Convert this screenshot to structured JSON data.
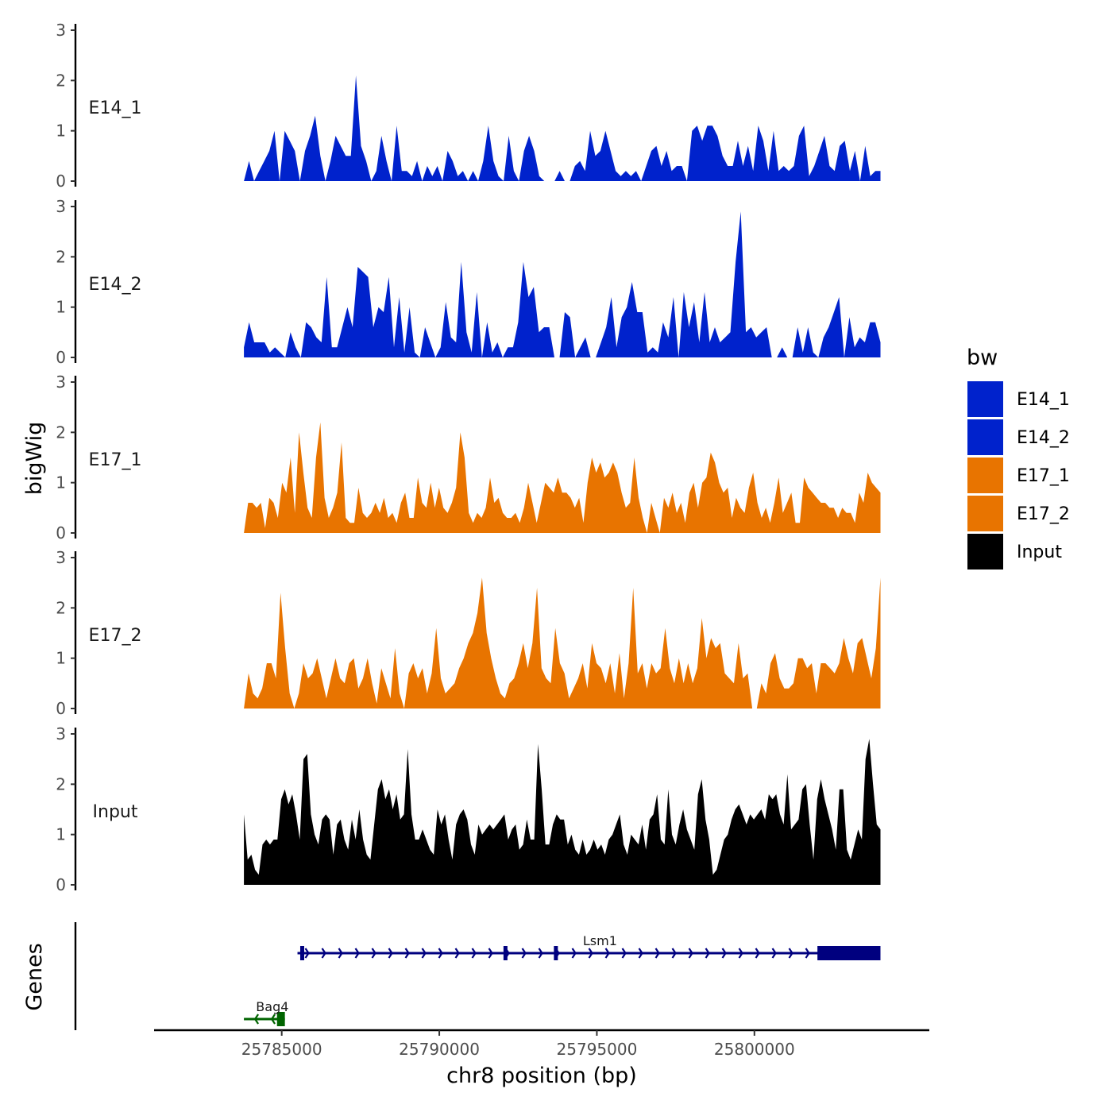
{
  "chart_data": {
    "type": "area",
    "region": "chr8",
    "xlabel": "chr8 position (bp)",
    "xlim": [
      25781000,
      25805500
    ],
    "xticks": [
      25785000,
      25790000,
      25795000,
      25800000
    ],
    "xtick_labels": [
      "25785000",
      "25790000",
      "25795000",
      "25800000"
    ],
    "data_range": [
      25783800,
      25804000
    ],
    "ylabel": "bigWig",
    "ylim": [
      0,
      3
    ],
    "yticks": [
      0,
      1,
      2,
      3
    ],
    "ytick_labels": [
      "0",
      "1",
      "2",
      "3"
    ],
    "legend": {
      "title": "bw",
      "entries": [
        {
          "label": "E14_1",
          "color": "#0022cc"
        },
        {
          "label": "E14_2",
          "color": "#0022cc"
        },
        {
          "label": "E17_1",
          "color": "#e87400"
        },
        {
          "label": "E17_2",
          "color": "#e87400"
        },
        {
          "label": "Input",
          "color": "#000000"
        }
      ]
    },
    "tracks": [
      {
        "name": "E14_1",
        "color": "#0022cc",
        "values": [
          0,
          0.4,
          0,
          0.2,
          0.4,
          0.6,
          1,
          0,
          1,
          0.8,
          0.6,
          0,
          0.6,
          0.9,
          1.3,
          0.5,
          0,
          0.4,
          0.9,
          0.7,
          0.5,
          0.5,
          2.1,
          0.7,
          0.4,
          0,
          0.2,
          0.9,
          0.4,
          0,
          1.1,
          0.2,
          0.2,
          0.1,
          0.4,
          0,
          0.3,
          0.1,
          0.3,
          0,
          0.6,
          0.4,
          0.1,
          0.2,
          0,
          0.2,
          0,
          0.4,
          1.1,
          0.4,
          0.1,
          0,
          0.9,
          0.2,
          0,
          0.6,
          0.9,
          0.6,
          0.1,
          0,
          0,
          0,
          0.2,
          0,
          0,
          0.3,
          0.4,
          0.2,
          1,
          0.5,
          0.6,
          1,
          0.6,
          0.2,
          0.1,
          0.2,
          0.1,
          0.2,
          0,
          0.3,
          0.6,
          0.7,
          0.3,
          0.6,
          0.2,
          0.3,
          0.3,
          0,
          1,
          1.1,
          0.8,
          1.1,
          1.1,
          0.9,
          0.5,
          0.3,
          0.3,
          0.8,
          0.3,
          0.7,
          0.2,
          1.1,
          0.8,
          0.2,
          1,
          0.2,
          0.3,
          0.2,
          0.3,
          0.9,
          1.1,
          0.1,
          0.3,
          0.6,
          0.9,
          0.3,
          0.2,
          0.7,
          0.8,
          0.2,
          0.6,
          0,
          0.7,
          0.1,
          0.2,
          0.2
        ]
      },
      {
        "name": "E14_2",
        "color": "#0022cc",
        "values": [
          0.2,
          0.7,
          0.3,
          0.3,
          0.3,
          0.1,
          0.2,
          0.1,
          0,
          0.5,
          0.2,
          0,
          0.7,
          0.6,
          0.4,
          0.3,
          1.6,
          0.2,
          0.2,
          0.6,
          1,
          0.6,
          1.8,
          1.7,
          1.6,
          0.6,
          1,
          0.9,
          1.6,
          0.2,
          1.2,
          0.1,
          1,
          0.1,
          0,
          0.6,
          0.3,
          0,
          0.2,
          1.1,
          0.4,
          0.3,
          1.9,
          0.5,
          0.1,
          1.3,
          0,
          0.7,
          0.1,
          0.3,
          0,
          0.2,
          0.2,
          0.7,
          1.9,
          1.2,
          1.4,
          0.5,
          0.6,
          0.6,
          0,
          0,
          0.9,
          0.8,
          0,
          0.2,
          0.4,
          0,
          0,
          0.3,
          0.6,
          1.2,
          0.2,
          0.8,
          1,
          1.5,
          0.9,
          0.9,
          0.1,
          0.2,
          0.1,
          0.7,
          0.4,
          1.2,
          0,
          1.3,
          0.6,
          1.1,
          0.3,
          1.3,
          0.3,
          0.6,
          0.3,
          0.4,
          0.5,
          1.9,
          2.9,
          0.5,
          0.6,
          0.4,
          0.5,
          0.6,
          0,
          0,
          0.2,
          0,
          0,
          0.6,
          0.1,
          0.6,
          0.1,
          0,
          0.4,
          0.6,
          0.9,
          1.2,
          0,
          0.8,
          0.2,
          0.4,
          0.3,
          0.7,
          0.7,
          0.3
        ]
      },
      {
        "name": "E17_1",
        "color": "#e87400",
        "values": [
          0,
          0.6,
          0.6,
          0.5,
          0.6,
          0.1,
          0.7,
          0.6,
          0.3,
          1,
          0.8,
          1.5,
          0.4,
          2,
          1.2,
          0.5,
          0.3,
          1.5,
          2.2,
          0.7,
          0.3,
          0.5,
          0.8,
          1.8,
          0.3,
          0.2,
          0.2,
          0.9,
          0.4,
          0.3,
          0.4,
          0.6,
          0.4,
          0.7,
          0.3,
          0.4,
          0.2,
          0.6,
          0.8,
          0.3,
          0.3,
          1.1,
          0.6,
          0.5,
          1,
          0.5,
          0.9,
          0.5,
          0.4,
          0.6,
          0.9,
          2.0,
          1.5,
          0.4,
          0.2,
          0.4,
          0.3,
          0.5,
          1.1,
          0.6,
          0.7,
          0.4,
          0.3,
          0.3,
          0.4,
          0.2,
          0.5,
          1,
          0.6,
          0.2,
          0.6,
          1,
          0.9,
          0.8,
          1.1,
          0.8,
          0.8,
          0.7,
          0.5,
          0.7,
          0.2,
          1,
          1.5,
          1.2,
          1.4,
          1.1,
          1.2,
          1.4,
          1.2,
          0.8,
          0.5,
          0.6,
          1.5,
          0.7,
          0.3,
          0,
          0.6,
          0.3,
          0,
          0.7,
          0.5,
          0.8,
          0.4,
          0.6,
          0.2,
          0.8,
          1,
          0.5,
          1,
          1.1,
          1.6,
          1.4,
          1,
          0.8,
          0.9,
          0.3,
          0.7,
          0.5,
          0.4,
          0.9,
          1.2,
          0.6,
          0.3,
          0.5,
          0.2,
          0.6,
          1.1,
          0.4,
          0.6,
          0.8,
          0.2,
          0.2,
          1.1,
          0.9,
          0.8,
          0.7,
          0.6,
          0.6,
          0.5,
          0.5,
          0.3,
          0.5,
          0.4,
          0.4,
          0.2,
          0.8,
          0.6,
          1.2,
          1,
          0.9,
          0.8
        ]
      },
      {
        "name": "E17_2",
        "color": "#e87400",
        "values": [
          0,
          0.7,
          0.3,
          0.2,
          0.4,
          0.9,
          0.9,
          0.6,
          2.3,
          1.2,
          0.3,
          0,
          0.3,
          0.9,
          0.6,
          0.7,
          1,
          0.6,
          0.2,
          0.6,
          1,
          0.6,
          0.5,
          0.9,
          1,
          0.4,
          0.6,
          1,
          0.5,
          0.1,
          0.8,
          0.5,
          0.2,
          1.2,
          0.3,
          0,
          0.7,
          0.9,
          0.6,
          0.8,
          0.3,
          0.7,
          1.6,
          0.6,
          0.3,
          0.4,
          0.5,
          0.8,
          1,
          1.3,
          1.5,
          1.9,
          2.6,
          1.5,
          1,
          0.6,
          0.3,
          0.2,
          0.5,
          0.6,
          0.9,
          1.3,
          0.8,
          1.3,
          2.4,
          0.8,
          0.6,
          0.5,
          1.6,
          0.9,
          0.7,
          0.2,
          0.4,
          0.6,
          0.9,
          0.4,
          1.3,
          0.9,
          0.8,
          0.5,
          0.9,
          0.3,
          1.1,
          0.2,
          0.9,
          2.4,
          0.7,
          0.9,
          0.4,
          0.9,
          0.7,
          0.8,
          1.6,
          0.8,
          0.5,
          1,
          0.5,
          0.9,
          0.5,
          0.8,
          1.8,
          1,
          1.4,
          1.2,
          1.3,
          0.7,
          0.6,
          0.5,
          1.3,
          0.6,
          0.7,
          0,
          0,
          0.5,
          0.3,
          0.9,
          1.1,
          0.6,
          0.4,
          0.4,
          0.5,
          1,
          1,
          0.8,
          0.9,
          0.3,
          0.9,
          0.9,
          0.8,
          0.7,
          0.9,
          1.4,
          1,
          0.7,
          1.3,
          1.4,
          1,
          0.6,
          1.2,
          2.6
        ]
      },
      {
        "name": "Input",
        "color": "#000000",
        "values": [
          1.4,
          0.5,
          0.6,
          0.3,
          0.2,
          0.8,
          0.9,
          0.8,
          0.9,
          0.9,
          1.7,
          1.9,
          1.6,
          1.8,
          1.4,
          0.9,
          2.5,
          2.6,
          1.4,
          1,
          0.8,
          1.3,
          1.4,
          1.3,
          0.6,
          1.2,
          1.3,
          0.9,
          0.7,
          1.3,
          0.9,
          1.5,
          0.9,
          0.6,
          0.5,
          1.2,
          1.9,
          2.1,
          1.7,
          1.9,
          1.5,
          1.8,
          1.3,
          1.4,
          2.7,
          1.4,
          0.9,
          0.9,
          1.1,
          0.9,
          0.7,
          0.6,
          1.5,
          1.2,
          1.4,
          0.9,
          0.5,
          1.2,
          1.4,
          1.5,
          1.3,
          0.8,
          0.6,
          1.2,
          1,
          1.1,
          1.2,
          1.1,
          1.2,
          1.3,
          1.4,
          0.9,
          1.1,
          1.2,
          0.7,
          0.8,
          1.3,
          0.9,
          0.9,
          2.8,
          1.9,
          0.8,
          0.8,
          1.2,
          1.4,
          1.3,
          1.3,
          0.8,
          1,
          0.7,
          0.6,
          0.9,
          0.6,
          0.7,
          0.9,
          0.7,
          0.8,
          0.6,
          0.9,
          1,
          1.2,
          1.4,
          0.8,
          0.6,
          1,
          0.9,
          0.8,
          1.2,
          0.7,
          1.3,
          1.4,
          1.8,
          0.9,
          0.8,
          1.9,
          1,
          0.8,
          1.2,
          1.5,
          1.1,
          0.9,
          0.7,
          1.8,
          2.1,
          1.3,
          0.9,
          0.2,
          0.3,
          0.6,
          0.9,
          1,
          1.3,
          1.5,
          1.6,
          1.4,
          1.2,
          1.4,
          1.3,
          1.4,
          1.5,
          1.3,
          1.8,
          1.7,
          1.8,
          1.4,
          1.2,
          2.2,
          1.1,
          1.2,
          1.3,
          1.9,
          2,
          1.2,
          0.5,
          1.7,
          2.1,
          1.7,
          1.4,
          1.1,
          0.7,
          1.9,
          1.9,
          0.7,
          0.5,
          0.8,
          1.1,
          0.9,
          2.5,
          2.9,
          2.0,
          1.2,
          1.1
        ]
      }
    ],
    "genes": {
      "label": "Genes",
      "items": [
        {
          "name": "Lsm1",
          "start": 25785500,
          "end": 25804000,
          "strand": "+",
          "color": "#00007f",
          "exon_marks": [
            25785650,
            25792100,
            25793700
          ],
          "thick_block": [
            25802000,
            25804000
          ]
        },
        {
          "name": "Bag4",
          "start": 25783800,
          "end": 25785100,
          "strand": "-",
          "color": "#006400",
          "exon_marks": [],
          "thick_block": [
            25784850,
            25785100
          ]
        }
      ]
    }
  }
}
